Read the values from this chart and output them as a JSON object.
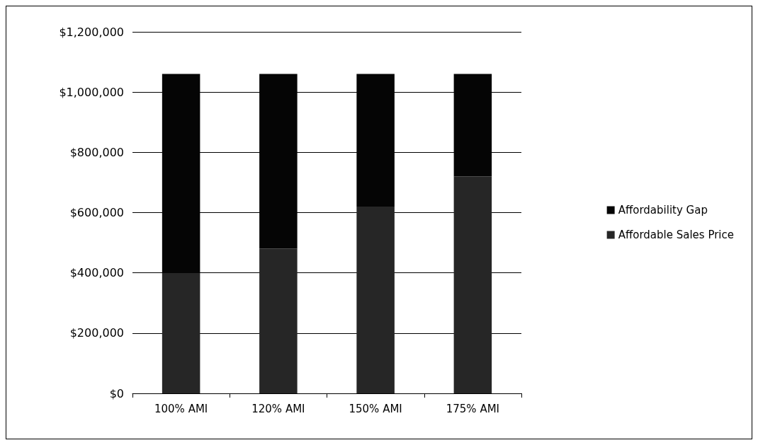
{
  "chart_data": {
    "type": "bar",
    "stacked": true,
    "categories": [
      "100% AMI",
      "120% AMI",
      "150% AMI",
      "175% AMI"
    ],
    "series": [
      {
        "name": "Affordable Sales Price",
        "color": "#262626",
        "values": [
          400000,
          480000,
          620000,
          720000
        ]
      },
      {
        "name": "Affordability Gap",
        "color": "#050505",
        "values": [
          660000,
          580000,
          440000,
          340000
        ]
      }
    ],
    "ylim": [
      0,
      1200000
    ],
    "yticks": [
      {
        "value": 0,
        "label": "$0"
      },
      {
        "value": 200000,
        "label": "$200,000"
      },
      {
        "value": 400000,
        "label": "$400,000"
      },
      {
        "value": 600000,
        "label": "$600,000"
      },
      {
        "value": 800000,
        "label": "$800,000"
      },
      {
        "value": 1000000,
        "label": "$1,000,000"
      },
      {
        "value": 1200000,
        "label": "$1,200,000"
      }
    ],
    "grid": "y",
    "legend": "right"
  }
}
